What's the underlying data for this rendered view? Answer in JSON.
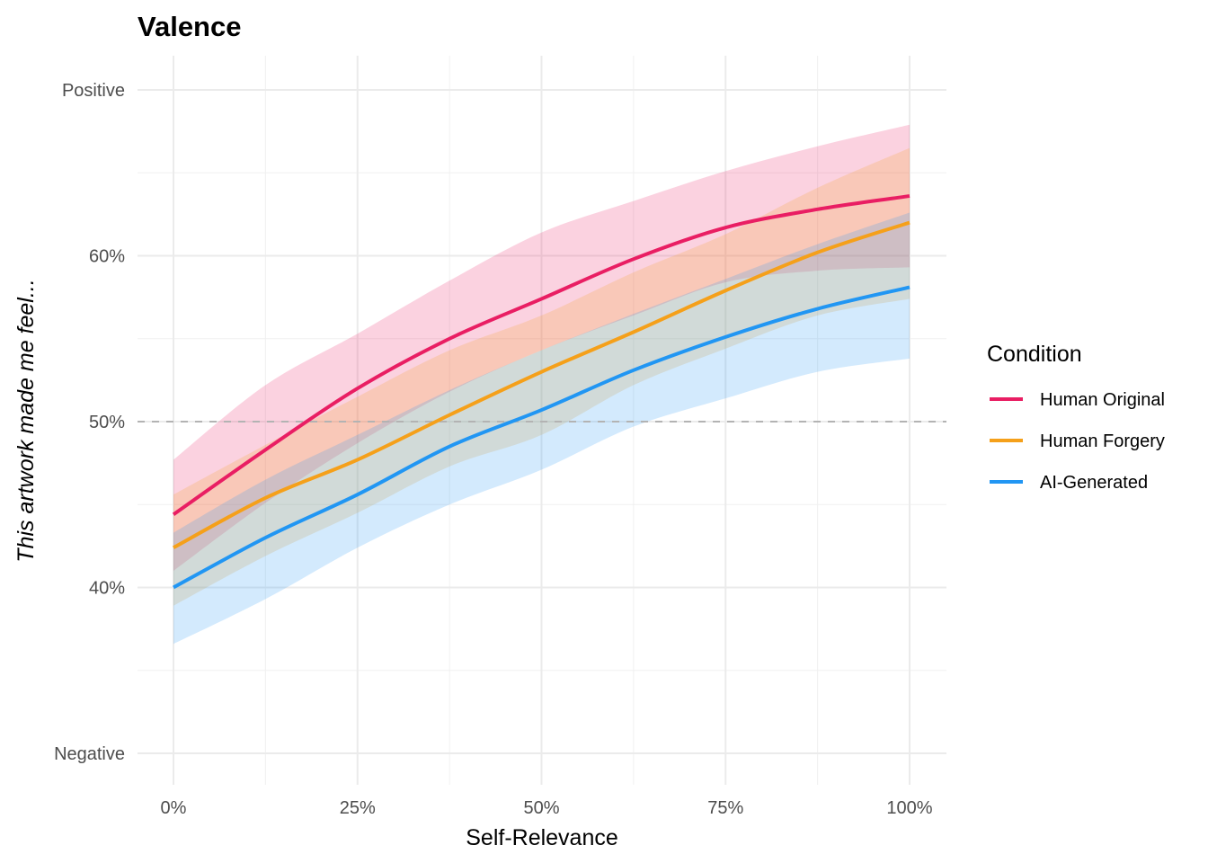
{
  "chart_data": {
    "type": "line",
    "title": "Valence",
    "xlabel": "Self-Relevance",
    "ylabel": "This artwork made me feel...",
    "xlim": [
      -5,
      105
    ],
    "ylim": [
      27.9,
      72.0
    ],
    "x_ticks": [
      {
        "value": 0,
        "label": "0%"
      },
      {
        "value": 25,
        "label": "25%"
      },
      {
        "value": 50,
        "label": "50%"
      },
      {
        "value": 75,
        "label": "75%"
      },
      {
        "value": 100,
        "label": "100%"
      }
    ],
    "x_minor_ticks": [
      12.5,
      37.5,
      62.5,
      87.5
    ],
    "y_ticks": [
      {
        "value": 30,
        "label": "Negative"
      },
      {
        "value": 40,
        "label": "40%"
      },
      {
        "value": 50,
        "label": "50%"
      },
      {
        "value": 60,
        "label": "60%"
      },
      {
        "value": 70,
        "label": "Positive"
      }
    ],
    "y_minor_ticks": [
      35,
      45,
      55,
      65
    ],
    "reference_line": {
      "y": 50,
      "style": "dashed",
      "color": "#b3b3b3"
    },
    "grid": true,
    "legend": {
      "title": "Condition",
      "position": "right"
    },
    "x": [
      0,
      12.5,
      25,
      37.5,
      50,
      62.5,
      75,
      87.5,
      100
    ],
    "series": [
      {
        "name": "Human Original",
        "color": "#E91E63",
        "values": [
          44.4,
          48.3,
          52.0,
          55.0,
          57.4,
          59.8,
          61.7,
          62.8,
          63.6
        ],
        "upper": [
          47.7,
          52.2,
          55.3,
          58.5,
          61.4,
          63.3,
          65.1,
          66.6,
          67.9
        ],
        "lower": [
          41.0,
          45.1,
          48.7,
          51.8,
          54.3,
          56.4,
          58.4,
          59.1,
          59.3
        ]
      },
      {
        "name": "Human Forgery",
        "color": "#F5A01A",
        "values": [
          42.4,
          45.4,
          47.7,
          50.4,
          53.0,
          55.4,
          57.9,
          60.2,
          62.0
        ],
        "upper": [
          45.6,
          48.6,
          51.5,
          54.3,
          56.4,
          59.0,
          61.3,
          64.1,
          66.5
        ],
        "lower": [
          38.9,
          41.9,
          44.5,
          47.3,
          49.2,
          52.2,
          54.4,
          56.4,
          57.4
        ]
      },
      {
        "name": "AI-Generated",
        "color": "#2196F3",
        "values": [
          40.0,
          43.0,
          45.6,
          48.5,
          50.7,
          53.1,
          55.1,
          56.8,
          58.1
        ],
        "upper": [
          43.3,
          46.5,
          49.2,
          51.9,
          54.3,
          56.5,
          58.6,
          60.7,
          62.6
        ],
        "lower": [
          36.6,
          39.3,
          42.4,
          45.0,
          47.1,
          49.7,
          51.4,
          53.0,
          53.8
        ]
      }
    ]
  }
}
